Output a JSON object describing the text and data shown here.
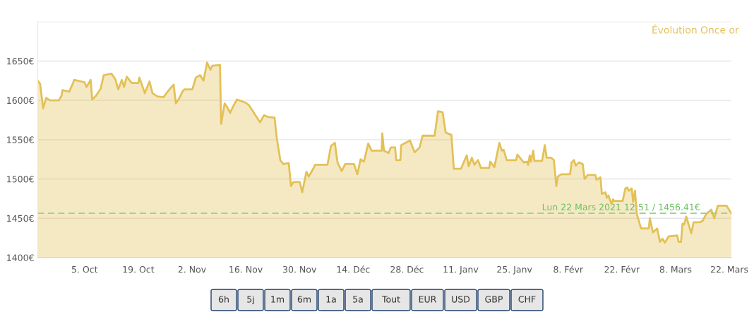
{
  "chart_data": {
    "type": "area",
    "title": "Évolution Once or",
    "x": [
      "2020-09-22T19:00",
      "2020-09-23T10:00",
      "2020-09-24T05:00",
      "2020-09-25T00:00",
      "2020-09-26T00:00",
      "2020-09-28T07:00",
      "2020-09-29T00:00",
      "2020-09-29T06:00",
      "2020-10-01T00:00",
      "2020-10-02T00:00",
      "2020-10-02T07:00",
      "2020-10-05T00:00",
      "2020-10-05T12:00",
      "2020-10-06T14:00",
      "2020-10-07T00:00",
      "2020-10-08T00:00",
      "2020-10-09T05:00",
      "2020-10-10T00:00",
      "2020-10-12T00:00",
      "2020-10-13T00:00",
      "2020-10-13T19:00",
      "2020-10-14T17:00",
      "2020-10-15T07:00",
      "2020-10-16T00:00",
      "2020-10-17T07:00",
      "2020-10-19T00:00",
      "2020-10-19T07:00",
      "2020-10-20T17:00",
      "2020-10-21T22:00",
      "2020-10-22T17:00",
      "2020-10-24T00:00",
      "2020-10-25T14:00",
      "2020-10-26T19:00",
      "2020-10-28T05:00",
      "2020-10-28T19:00",
      "2020-10-29T17:00",
      "2020-10-30T12:00",
      "2020-10-31T00:00",
      "2020-11-02T02:00",
      "2020-11-03T00:00",
      "2020-11-04T02:00",
      "2020-11-05T00:00",
      "2020-11-05T22:00",
      "2020-11-06T19:00",
      "2020-11-07T07:00",
      "2020-11-09T07:00",
      "2020-11-09T14:00",
      "2020-11-10T12:00",
      "2020-11-11T05:00",
      "2020-11-11T22:00",
      "2020-11-12T19:00",
      "2020-11-13T17:00",
      "2020-11-16T00:00",
      "2020-11-16T19:00",
      "2020-11-18T00:00",
      "2020-11-19T17:00",
      "2020-11-20T19:00",
      "2020-11-21T17:00",
      "2020-11-23T12:00",
      "2020-11-24T02:00",
      "2020-11-25T00:00",
      "2020-11-25T19:00",
      "2020-11-27T05:00",
      "2020-11-27T19:00",
      "2020-11-28T10:00",
      "2020-11-30T02:00",
      "2020-11-30T17:00",
      "2020-12-01T19:00",
      "2020-12-02T10:00",
      "2020-12-03T14:00",
      "2020-12-04T02:00",
      "2020-12-07T07:00",
      "2020-12-08T05:00",
      "2020-12-09T05:00",
      "2020-12-09T22:00",
      "2020-12-11T00:00",
      "2020-12-11T22:00",
      "2020-12-14T05:00",
      "2020-12-15T02:00",
      "2020-12-15T22:00",
      "2020-12-16T19:00",
      "2020-12-17T22:00",
      "2020-12-18T19:00",
      "2020-12-21T10:00",
      "2020-12-21T14:00",
      "2020-12-22T00:00",
      "2020-12-23T05:00",
      "2020-12-23T19:00",
      "2020-12-24T22:00",
      "2020-12-25T05:00",
      "2020-12-26T07:00",
      "2020-12-26T12:00",
      "2020-12-28T19:00",
      "2020-12-30T00:00",
      "2020-12-31T07:00",
      "2021-01-01T02:00",
      "2021-01-04T05:00",
      "2021-01-05T02:00",
      "2021-01-06T07:00",
      "2021-01-07T02:00",
      "2021-01-08T14:00",
      "2021-01-09T05:00",
      "2021-01-11T02:00",
      "2021-01-12T14:00",
      "2021-01-13T02:00",
      "2021-01-13T22:00",
      "2021-01-14T14:00",
      "2021-01-15T12:00",
      "2021-01-16T07:00",
      "2021-01-18T10:00",
      "2021-01-18T17:00",
      "2021-01-19T19:00",
      "2021-01-21T02:00",
      "2021-01-21T17:00",
      "2021-01-22T05:00",
      "2021-01-23T00:00",
      "2021-01-25T10:00",
      "2021-01-25T19:00",
      "2021-01-27T10:00",
      "2021-01-28T07:00",
      "2021-01-28T14:00",
      "2021-01-29T00:00",
      "2021-01-29T07:00",
      "2021-01-29T22:00",
      "2021-01-30T05:00",
      "2021-02-01T05:00",
      "2021-02-01T22:00",
      "2021-02-02T10:00",
      "2021-02-03T14:00",
      "2021-02-04T07:00",
      "2021-02-04T22:00",
      "2021-02-05T07:00",
      "2021-02-06T05:00",
      "2021-02-08T12:00",
      "2021-02-08T22:00",
      "2021-02-09T12:00",
      "2021-02-10T00:00",
      "2021-02-10T19:00",
      "2021-02-11T19:00",
      "2021-02-12T07:00",
      "2021-02-13T02:00",
      "2021-02-15T02:00",
      "2021-02-15T10:00",
      "2021-02-16T10:00",
      "2021-02-16T19:00",
      "2021-02-17T17:00",
      "2021-02-18T02:00",
      "2021-02-18T12:00",
      "2021-02-19T07:00",
      "2021-02-19T17:00",
      "2021-02-20T00:00",
      "2021-02-22T05:00",
      "2021-02-22T22:00",
      "2021-02-23T10:00",
      "2021-02-23T19:00",
      "2021-02-24T14:00",
      "2021-02-24T22:00",
      "2021-02-25T10:00",
      "2021-02-25T22:00",
      "2021-02-27T00:00",
      "2021-03-01T00:00",
      "2021-03-01T07:00",
      "2021-03-02T02:00",
      "2021-03-03T05:00",
      "2021-03-03T22:00",
      "2021-03-04T14:00",
      "2021-03-05T05:00",
      "2021-03-06T05:00",
      "2021-03-08T10:00",
      "2021-03-08T19:00",
      "2021-03-09T10:00",
      "2021-03-09T19:00",
      "2021-03-10T05:00",
      "2021-03-10T19:00",
      "2021-03-12T02:00",
      "2021-03-12T17:00",
      "2021-03-14T10:00",
      "2021-03-15T02:00",
      "2021-03-15T22:00",
      "2021-03-17T07:00",
      "2021-03-18T02:00",
      "2021-03-19T00:00",
      "2021-03-21T07:00",
      "2021-03-22T12:51"
    ],
    "series": [
      {
        "color": "#e3c157",
        "values": [
          1625,
          1621,
          1590,
          1603,
          1600,
          1600,
          1606,
          1613,
          1611,
          1622,
          1626,
          1623,
          1617,
          1626,
          1601,
          1606,
          1615,
          1632,
          1634,
          1627,
          1614,
          1626,
          1617,
          1630,
          1622,
          1622,
          1629,
          1609,
          1624,
          1609,
          1605,
          1604,
          1612,
          1620,
          1596,
          1603,
          1611,
          1614,
          1614,
          1629,
          1632,
          1625,
          1648,
          1639,
          1644,
          1645,
          1570,
          1596,
          1591,
          1584,
          1593,
          1601,
          1597,
          1594,
          1585,
          1572,
          1581,
          1579,
          1578,
          1552,
          1524,
          1519,
          1520,
          1491,
          1496,
          1496,
          1483,
          1509,
          1503,
          1513,
          1518,
          1518,
          1542,
          1546,
          1521,
          1510,
          1519,
          1519,
          1506,
          1525,
          1522,
          1545,
          1536,
          1536,
          1558,
          1536,
          1533,
          1540,
          1540,
          1524,
          1524,
          1543,
          1549,
          1534,
          1540,
          1555,
          1555,
          1586,
          1585,
          1559,
          1556,
          1513,
          1513,
          1530,
          1516,
          1527,
          1518,
          1524,
          1514,
          1514,
          1522,
          1515,
          1546,
          1536,
          1537,
          1524,
          1524,
          1531,
          1521,
          1522,
          1518,
          1530,
          1522,
          1536,
          1523,
          1523,
          1543,
          1527,
          1527,
          1524,
          1491,
          1503,
          1506,
          1506,
          1521,
          1524,
          1517,
          1521,
          1519,
          1500,
          1505,
          1505,
          1499,
          1502,
          1481,
          1483,
          1476,
          1479,
          1468,
          1474,
          1472,
          1472,
          1488,
          1489,
          1485,
          1488,
          1471,
          1485,
          1455,
          1437,
          1437,
          1450,
          1432,
          1437,
          1420,
          1424,
          1419,
          1427,
          1428,
          1420,
          1420,
          1443,
          1442,
          1452,
          1431,
          1445,
          1445,
          1447,
          1455,
          1461,
          1450,
          1466,
          1466,
          1456
        ]
      }
    ],
    "xlim": [
      "2020-09-22T19:00",
      "2021-03-22T12:51"
    ],
    "xticks": [
      {
        "value": "2020-10-05",
        "label": "5. Oct"
      },
      {
        "value": "2020-10-19",
        "label": "19. Oct"
      },
      {
        "value": "2020-11-02",
        "label": "2. Nov"
      },
      {
        "value": "2020-11-16",
        "label": "16. Nov"
      },
      {
        "value": "2020-11-30",
        "label": "30. Nov"
      },
      {
        "value": "2020-12-14",
        "label": "14. Déc"
      },
      {
        "value": "2020-12-28",
        "label": "28. Déc"
      },
      {
        "value": "2021-01-11",
        "label": "11. Janv"
      },
      {
        "value": "2021-01-25",
        "label": "25. Janv"
      },
      {
        "value": "2021-02-08",
        "label": "8. Févr"
      },
      {
        "value": "2021-02-22",
        "label": "22. Févr"
      },
      {
        "value": "2021-03-08",
        "label": "8. Mars"
      },
      {
        "value": "2021-03-22",
        "label": "22. Mars"
      }
    ],
    "ylim": [
      1400,
      1700
    ],
    "yticks": [
      {
        "value": 1400,
        "label": "1400€"
      },
      {
        "value": 1450,
        "label": "1450€"
      },
      {
        "value": 1500,
        "label": "1500€"
      },
      {
        "value": 1550,
        "label": "1550€"
      },
      {
        "value": 1600,
        "label": "1600€"
      },
      {
        "value": 1650,
        "label": "1650€"
      },
      {
        "value": 1700,
        "label": null
      }
    ],
    "grid": "y",
    "ref_lines": [
      {
        "axis": "y",
        "value": 1456.41,
        "label": "Lun 22 Mars 2021 12:51 / 1456.41€",
        "color": "#8fd68a",
        "line_style": "dashed"
      }
    ],
    "annotations": [
      "6h",
      "5j",
      "1m",
      "6m",
      "1a",
      "5a",
      "Tout",
      "EUR",
      "USD",
      "GBP",
      "CHF"
    ]
  }
}
